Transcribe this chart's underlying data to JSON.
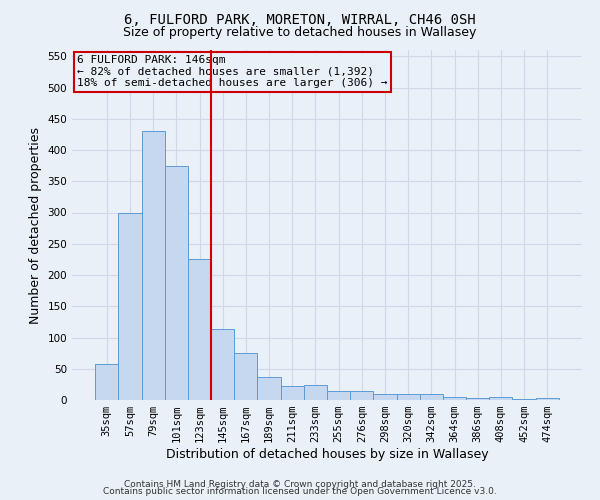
{
  "title_line1": "6, FULFORD PARK, MORETON, WIRRAL, CH46 0SH",
  "title_line2": "Size of property relative to detached houses in Wallasey",
  "xlabel": "Distribution of detached houses by size in Wallasey",
  "ylabel": "Number of detached properties",
  "categories": [
    "35sqm",
    "57sqm",
    "79sqm",
    "101sqm",
    "123sqm",
    "145sqm",
    "167sqm",
    "189sqm",
    "211sqm",
    "233sqm",
    "255sqm",
    "276sqm",
    "298sqm",
    "320sqm",
    "342sqm",
    "364sqm",
    "386sqm",
    "408sqm",
    "452sqm",
    "474sqm"
  ],
  "values": [
    57,
    300,
    430,
    375,
    226,
    114,
    76,
    37,
    22,
    24,
    14,
    14,
    9,
    9,
    9,
    5,
    4,
    5,
    1,
    4
  ],
  "bar_color": "#c5d8f0",
  "bar_edge_color": "#5b9bd5",
  "grid_color": "#d0d8e8",
  "background_color": "#eaf0f8",
  "vline_color": "#cc0000",
  "vline_x_index": 5,
  "annotation_line1": "6 FULFORD PARK: 146sqm",
  "annotation_line2": "← 82% of detached houses are smaller (1,392)",
  "annotation_line3": "18% of semi-detached houses are larger (306) →",
  "annotation_box_color": "#cc0000",
  "ylim": [
    0,
    560
  ],
  "yticks": [
    0,
    50,
    100,
    150,
    200,
    250,
    300,
    350,
    400,
    450,
    500,
    550
  ],
  "footer_line1": "Contains HM Land Registry data © Crown copyright and database right 2025.",
  "footer_line2": "Contains public sector information licensed under the Open Government Licence v3.0.",
  "title_fontsize": 10,
  "subtitle_fontsize": 9,
  "axis_label_fontsize": 9,
  "tick_fontsize": 7.5,
  "annotation_fontsize": 8,
  "footer_fontsize": 6.5
}
